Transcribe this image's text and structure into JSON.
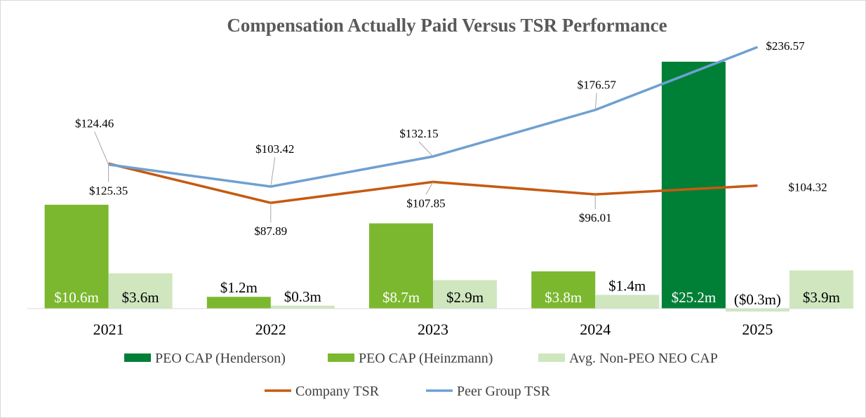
{
  "chart_data": {
    "type": "bar",
    "title": "Compensation Actually Paid Versus TSR Performance",
    "categories": [
      "2021",
      "2022",
      "2023",
      "2024",
      "2025"
    ],
    "bar_unit": "$m",
    "bar_series": [
      {
        "name": "PEO CAP (Henderson)",
        "color": "#007f37",
        "values": [
          null,
          null,
          null,
          null,
          25.2
        ],
        "labels": [
          "",
          "",
          "",
          "",
          "$25.2m"
        ]
      },
      {
        "name": "PEO CAP (Heinzmann)",
        "color": "#7cb82f",
        "values": [
          10.6,
          1.2,
          8.7,
          3.8,
          null
        ],
        "labels": [
          "$10.6m",
          "$1.2m",
          "$8.7m",
          "$3.8m",
          ""
        ]
      },
      {
        "name": "Avg. Non-PEO NEO CAP",
        "color": "#cfe6bf",
        "values": [
          3.6,
          0.3,
          2.9,
          1.4,
          -0.3
        ],
        "labels": [
          "$3.6m",
          "$0.3m",
          "$2.9m",
          "$1.4m",
          "($0.3m)"
        ]
      },
      {
        "name": "Avg. Non-PEO NEO CAP",
        "color": "#cfe6bf",
        "values": [
          null,
          null,
          null,
          null,
          3.9
        ],
        "labels": [
          "",
          "",
          "",
          "",
          "$3.9m"
        ]
      }
    ],
    "line_series": [
      {
        "name": "Company TSR",
        "color": "#c55a11",
        "values": [
          125.35,
          87.89,
          107.85,
          96.01,
          104.32
        ],
        "labels": [
          "$125.35",
          "$87.89",
          "$107.85",
          "$96.01",
          "$104.32"
        ]
      },
      {
        "name": "Peer Group TSR",
        "color": "#6ea0d2",
        "values": [
          124.46,
          103.42,
          132.15,
          176.57,
          236.57
        ],
        "labels": [
          "$124.46",
          "$103.42",
          "$132.15",
          "$176.57",
          "$236.57"
        ]
      }
    ],
    "legend": [
      {
        "name": "PEO CAP (Henderson)",
        "kind": "bar",
        "color": "#007f37"
      },
      {
        "name": "PEO CAP (Heinzmann)",
        "kind": "bar",
        "color": "#7cb82f"
      },
      {
        "name": "Avg. Non-PEO NEO CAP",
        "kind": "bar",
        "color": "#cfe6bf"
      },
      {
        "name": "Company TSR",
        "kind": "line",
        "color": "#c55a11"
      },
      {
        "name": "Peer Group TSR",
        "kind": "line",
        "color": "#6ea0d2"
      }
    ],
    "legend_position": "bottom",
    "bar_axis_range": [
      0,
      25.2
    ],
    "line_axis_range": [
      80,
      240
    ],
    "grid": false
  }
}
